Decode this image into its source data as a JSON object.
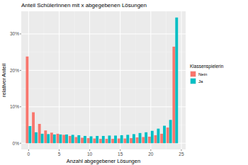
{
  "chart_data": {
    "type": "bar",
    "title": "Anteil SchülerInnen mit x abgegebenen Lösungen",
    "x_label": "Anzahl abgegebener Lösungen",
    "y_label": "relativer Anteil",
    "legend_title": "Klassenspielerin",
    "x": [
      0,
      1,
      2,
      3,
      4,
      5,
      6,
      7,
      8,
      9,
      10,
      11,
      12,
      13,
      14,
      15,
      16,
      17,
      18,
      19,
      20,
      21,
      22,
      23,
      24
    ],
    "series": [
      {
        "name": "Nein",
        "color": "#F8766D",
        "values": [
          23.8,
          8.5,
          5.3,
          3.5,
          2.9,
          2.6,
          2.3,
          2.0,
          1.7,
          1.5,
          1.4,
          1.3,
          1.2,
          1.2,
          1.2,
          1.3,
          1.3,
          1.4,
          1.6,
          1.7,
          1.8,
          2.2,
          2.6,
          4.3,
          26.5
        ]
      },
      {
        "name": "Ja",
        "color": "#00BFC4",
        "values": [
          4.7,
          3.0,
          2.6,
          2.5,
          2.4,
          2.4,
          2.4,
          2.3,
          2.2,
          2.0,
          1.9,
          2.0,
          2.0,
          2.1,
          2.1,
          2.2,
          2.3,
          2.5,
          2.8,
          3.0,
          3.4,
          4.0,
          4.8,
          6.4,
          34.5
        ]
      }
    ],
    "xlim": [
      -1.2,
      25.7
    ],
    "ylim": [
      -1.7,
      36.2
    ],
    "xticks": [
      0,
      5,
      10,
      15,
      20,
      25
    ],
    "yticks": [
      {
        "value": 0,
        "label": "0%"
      },
      {
        "value": 10,
        "label": "10%"
      },
      {
        "value": 20,
        "label": "20%"
      },
      {
        "value": 30,
        "label": "30%"
      }
    ],
    "grid": true,
    "legend": "right"
  }
}
